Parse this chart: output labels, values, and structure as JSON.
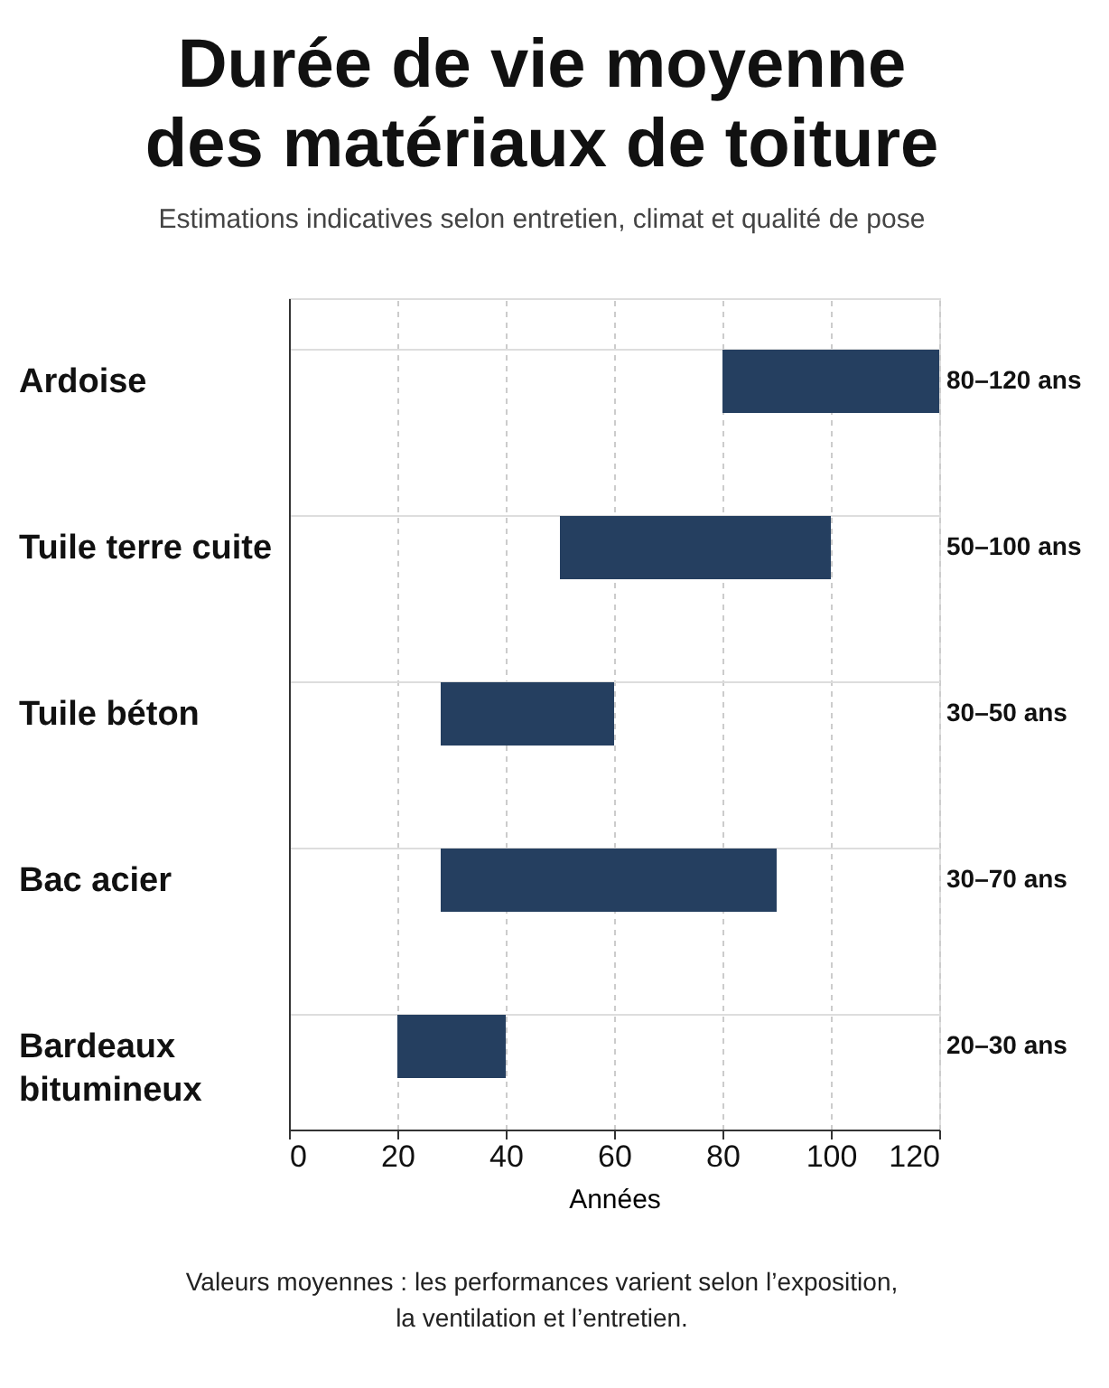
{
  "chart_data": {
    "type": "bar",
    "orientation": "horizontal",
    "title": "Durée de vie moyenne des matériaux de toiture",
    "subtitle": "Estimations indicatives selon entretien, climat et qualité de pose",
    "xlabel": "Années",
    "categories": [
      "Ardoise",
      "Tuile terre cuite",
      "Tuile béton",
      "Bac acier",
      "Bardeaux bitumineux"
    ],
    "base": [
      80,
      50,
      28,
      28,
      20
    ],
    "values": [
      40,
      50,
      32,
      62,
      20
    ],
    "color": "#253f60",
    "xlim": [
      0,
      120
    ],
    "xticks": [
      0,
      20,
      40,
      60,
      80,
      100,
      120
    ],
    "grid": true,
    "annotations": [
      "80–120 ans",
      "50–100 ans",
      "30–50 ans",
      "30–70 ans",
      "20–30 ans",
      "Valeurs moyennes : les performances varient selon l’exposition, la ventilation et l’entretien."
    ]
  }
}
